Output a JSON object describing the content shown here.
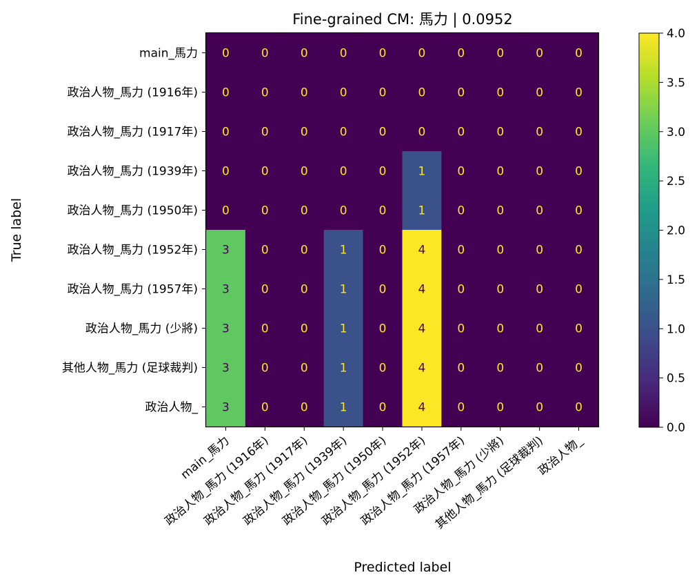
{
  "chart_data": {
    "type": "heatmap",
    "title": "Fine-grained CM: 馬力 | 0.0952",
    "xlabel": "Predicted label",
    "ylabel": "True label",
    "row_labels": [
      "main_馬力",
      "政治人物_馬力 (1916年)",
      "政治人物_馬力 (1917年)",
      "政治人物_馬力 (1939年)",
      "政治人物_馬力 (1950年)",
      "政治人物_馬力 (1952年)",
      "政治人物_馬力 (1957年)",
      "政治人物_馬力 (少將)",
      "其他人物_馬力 (足球裁判)",
      "政治人物_"
    ],
    "col_labels": [
      "main_馬力",
      "政治人物_馬力 (1916年)",
      "政治人物_馬力 (1917年)",
      "政治人物_馬力 (1939年)",
      "政治人物_馬力 (1950年)",
      "政治人物_馬力 (1952年)",
      "政治人物_馬力 (1957年)",
      "政治人物_馬力 (少將)",
      "其他人物_馬力 (足球裁判)",
      "政治人物_"
    ],
    "values": [
      [
        0,
        0,
        0,
        0,
        0,
        0,
        0,
        0,
        0,
        0
      ],
      [
        0,
        0,
        0,
        0,
        0,
        0,
        0,
        0,
        0,
        0
      ],
      [
        0,
        0,
        0,
        0,
        0,
        0,
        0,
        0,
        0,
        0
      ],
      [
        0,
        0,
        0,
        0,
        0,
        1,
        0,
        0,
        0,
        0
      ],
      [
        0,
        0,
        0,
        0,
        0,
        1,
        0,
        0,
        0,
        0
      ],
      [
        3,
        0,
        0,
        1,
        0,
        4,
        0,
        0,
        0,
        0
      ],
      [
        3,
        0,
        0,
        1,
        0,
        4,
        0,
        0,
        0,
        0
      ],
      [
        3,
        0,
        0,
        1,
        0,
        4,
        0,
        0,
        0,
        0
      ],
      [
        3,
        0,
        0,
        1,
        0,
        4,
        0,
        0,
        0,
        0
      ],
      [
        3,
        0,
        0,
        1,
        0,
        4,
        0,
        0,
        0,
        0
      ]
    ],
    "vmin": 0,
    "vmax": 4,
    "colormap": "viridis",
    "colorbar_ticks": [
      "0.0",
      "0.5",
      "1.0",
      "1.5",
      "2.0",
      "2.5",
      "3.0",
      "3.5",
      "4.0"
    ],
    "text_color_dark_bg": "#fde725",
    "text_color_light_bg": "#440154",
    "grid": false
  }
}
